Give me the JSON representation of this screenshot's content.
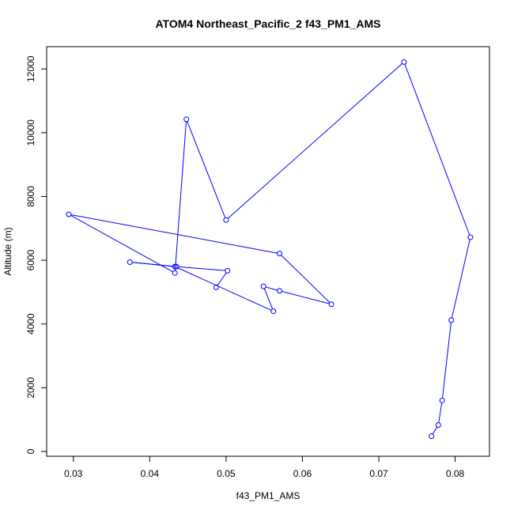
{
  "chart_data": {
    "type": "line",
    "title": "ATOM4 Northeast_Pacific_2 f43_PM1_AMS",
    "xlabel": "f43_PM1_AMS",
    "ylabel": "Altitude (m)",
    "xlim": [
      0.0265,
      0.0845
    ],
    "ylim": [
      -150,
      12700
    ],
    "xticks": [
      0.03,
      0.04,
      0.05,
      0.06,
      0.07,
      0.08
    ],
    "yticks": [
      0,
      2000,
      4000,
      6000,
      8000,
      10000,
      12000
    ],
    "grid": false,
    "line_color": "#0000ff",
    "marker": "open-circle",
    "series": [
      {
        "x": [
          0.0769,
          0.0778,
          0.0783,
          0.0795,
          0.082,
          0.0733,
          0.05,
          0.0448,
          0.0433,
          0.0294,
          0.057,
          0.0638,
          0.057,
          0.0549,
          0.0562,
          0.0433,
          0.0374,
          0.0435,
          0.0502,
          0.0487
        ],
        "y": [
          480,
          830,
          1600,
          4120,
          6720,
          12220,
          7260,
          10420,
          5600,
          7440,
          6210,
          4620,
          5040,
          5180,
          4400,
          5800,
          5940,
          5800,
          5670,
          5150
        ]
      }
    ]
  }
}
